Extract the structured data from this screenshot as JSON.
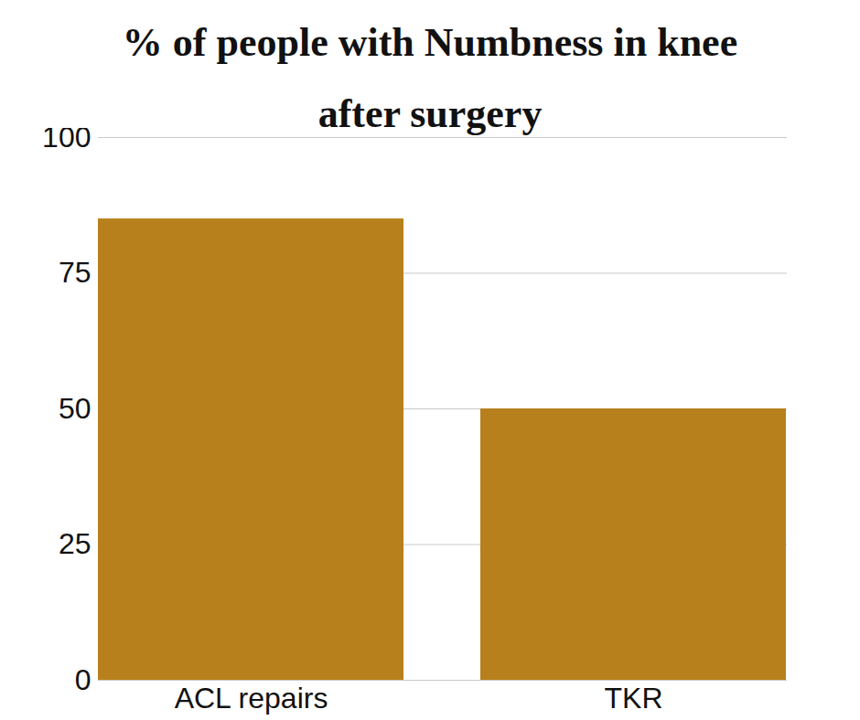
{
  "chart_data": {
    "type": "bar",
    "title": "% of people with Numbness in knee after surgery",
    "categories": [
      "ACL repairs",
      "TKR"
    ],
    "values": [
      85,
      50
    ],
    "color": "#b8801c",
    "ylim": [
      0,
      100
    ],
    "yticks": [
      0,
      25,
      50,
      75,
      100
    ],
    "grid": true
  }
}
